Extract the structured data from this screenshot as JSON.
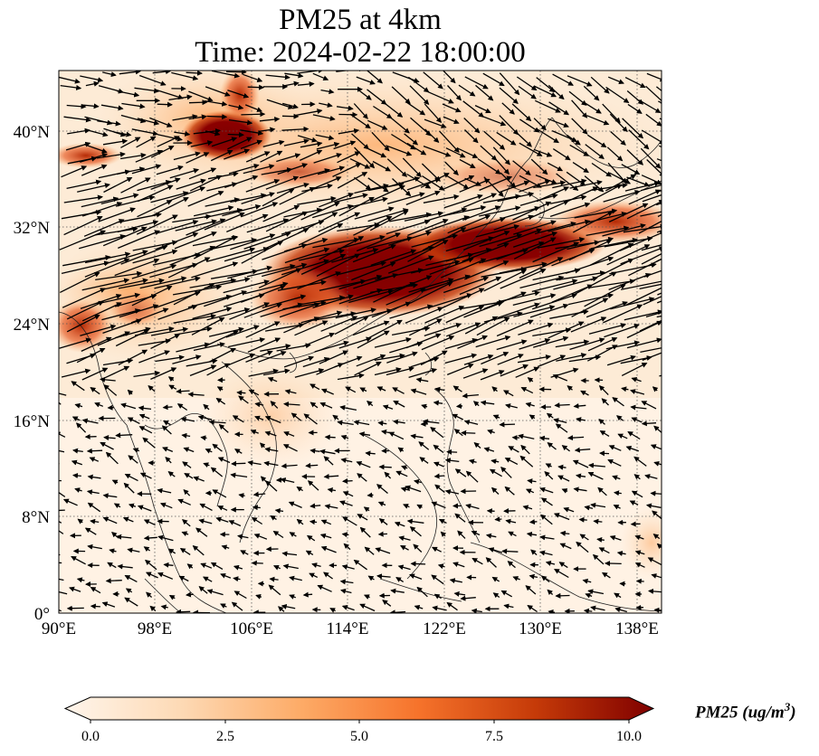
{
  "title_line1": "PM25 at 4km",
  "title_line2": "Time: 2024-02-22 18:00:00",
  "lat_labels": [
    "40°N",
    "32°N",
    "24°N",
    "16°N",
    "8°N",
    "0°"
  ],
  "lon_labels": [
    "90°E",
    "98°E",
    "106°E",
    "114°E",
    "122°E",
    "130°E",
    "138°E"
  ],
  "colorbar": {
    "label": "PM25 (ug/m",
    "label_sup": "3",
    "label_end": ")",
    "ticks": [
      "0.0",
      "2.5",
      "5.0",
      "7.5",
      "10.0"
    ],
    "min": 0,
    "max": 10,
    "colors": [
      "#fff5eb",
      "#fdd9b4",
      "#fdab67",
      "#f6732b",
      "#c53a08",
      "#7f0000"
    ]
  },
  "map_extent": {
    "lon": [
      90,
      140
    ],
    "lat": [
      0,
      45
    ]
  }
}
